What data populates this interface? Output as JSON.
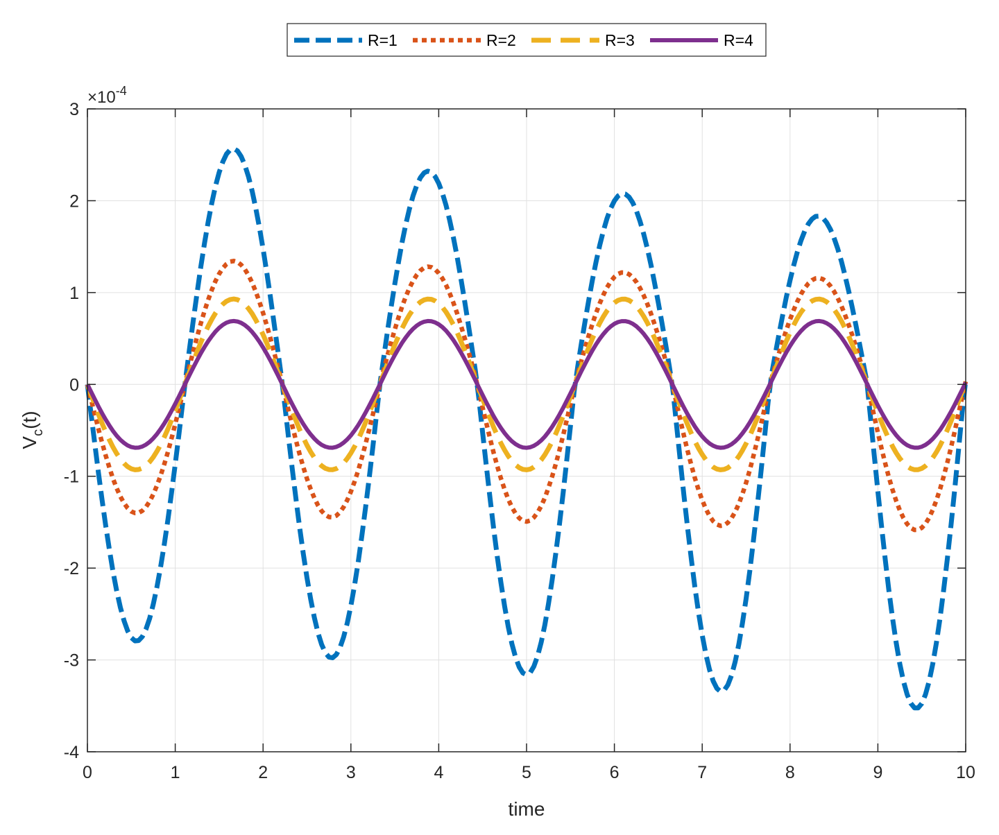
{
  "chart_data": {
    "type": "line",
    "xlabel": "time",
    "ylabel_main": "V",
    "ylabel_sub": "c",
    "ylabel_tail": "(t)",
    "xlim": [
      0,
      10
    ],
    "ylim": [
      -4,
      3
    ],
    "x_ticks": [
      0,
      1,
      2,
      3,
      4,
      5,
      6,
      7,
      8,
      9,
      10
    ],
    "x_tick_labels": [
      "0",
      "1",
      "2",
      "3",
      "4",
      "5",
      "6",
      "7",
      "8",
      "9",
      "10"
    ],
    "y_ticks": [
      -4,
      -3,
      -2,
      -1,
      0,
      1,
      2,
      3
    ],
    "y_tick_labels": [
      "-4",
      "-3",
      "-2",
      "-1",
      "0",
      "1",
      "2",
      "3"
    ],
    "y_exponent_base": "×10",
    "y_exponent_power": "-4",
    "grid": true,
    "legend_position": "top-center",
    "legend_orientation": "horizontal",
    "period": 2.22,
    "series": [
      {
        "name": "R=1",
        "color": "#0072BD",
        "style": "dashed",
        "amplitude": 2.75,
        "peak_growth": 0.03,
        "trough_growth": -0.04,
        "label": "R=1"
      },
      {
        "name": "R=2",
        "color": "#D95319",
        "style": "dotted",
        "amplitude": 1.39,
        "peak_growth": 0.015,
        "trough_growth": -0.02,
        "label": "R=2"
      },
      {
        "name": "R=3",
        "color": "#EDB120",
        "style": "long-dash",
        "amplitude": 0.93,
        "peak_growth": 0.0,
        "trough_growth": 0.0,
        "label": "R=3"
      },
      {
        "name": "R=4",
        "color": "#7E2F8E",
        "style": "solid",
        "amplitude": 0.69,
        "peak_growth": 0.0,
        "trough_growth": 0.0,
        "label": "R=4"
      }
    ]
  }
}
